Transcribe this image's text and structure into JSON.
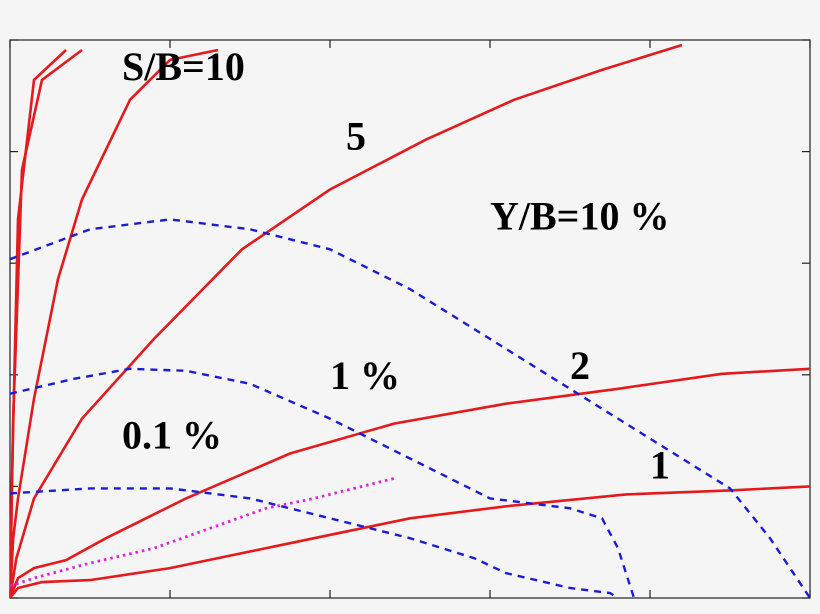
{
  "chart_data": {
    "type": "line",
    "grid": false,
    "series": [
      {
        "name": "S/B=10",
        "style": "solid",
        "color": "#e41a1c",
        "points": [
          [
            0,
            0
          ],
          [
            0.05,
            2
          ],
          [
            0.4,
            18
          ],
          [
            1.5,
            43
          ],
          [
            4,
            52
          ],
          [
            9,
            55
          ]
        ]
      },
      {
        "name": "S/B=10",
        "style": "solid",
        "color": "#e41a1c",
        "points": [
          [
            0,
            0
          ],
          [
            0.05,
            2
          ],
          [
            0.3,
            14
          ],
          [
            1,
            38
          ],
          [
            3,
            52
          ],
          [
            7,
            55
          ]
        ]
      },
      {
        "name": "S/B=10",
        "style": "solid",
        "color": "#e41a1c",
        "points": [
          [
            0,
            0
          ],
          [
            0.4,
            6
          ],
          [
            1,
            10
          ],
          [
            3,
            20
          ],
          [
            6,
            32
          ],
          [
            9,
            40
          ],
          [
            15,
            50
          ],
          [
            20,
            54
          ],
          [
            26,
            55
          ]
        ]
      },
      {
        "name": "5",
        "style": "solid",
        "color": "#e41a1c",
        "points": [
          [
            0,
            0
          ],
          [
            0.8,
            4
          ],
          [
            3,
            10
          ],
          [
            9,
            18
          ],
          [
            18,
            26
          ],
          [
            29,
            35
          ],
          [
            40,
            41
          ],
          [
            52,
            46
          ],
          [
            63,
            50
          ],
          [
            74,
            53
          ],
          [
            84,
            55.5
          ]
        ]
      },
      {
        "name": "2",
        "style": "solid",
        "color": "#e41a1c",
        "points": [
          [
            0,
            0
          ],
          [
            1,
            2
          ],
          [
            3,
            3
          ],
          [
            7,
            3.8
          ],
          [
            12,
            6
          ],
          [
            22,
            10
          ],
          [
            35,
            14.5
          ],
          [
            48,
            17.5
          ],
          [
            62,
            19.5
          ],
          [
            76,
            21
          ],
          [
            89,
            22.5
          ],
          [
            100,
            23
          ]
        ]
      },
      {
        "name": "1",
        "style": "solid",
        "color": "#e41a1c",
        "points": [
          [
            0,
            0
          ],
          [
            1,
            1
          ],
          [
            4,
            1.6
          ],
          [
            10,
            1.8
          ],
          [
            20,
            3
          ],
          [
            35,
            5.5
          ],
          [
            50,
            8
          ],
          [
            62,
            9.2
          ],
          [
            77,
            10.4
          ],
          [
            90,
            10.8
          ],
          [
            100,
            11.2
          ]
        ]
      },
      {
        "name": "Y/B=10 %",
        "style": "dashed",
        "color": "#1a1adb",
        "points": [
          [
            0,
            34
          ],
          [
            10,
            37
          ],
          [
            20,
            38
          ],
          [
            30,
            37
          ],
          [
            40,
            35
          ],
          [
            50,
            31
          ],
          [
            60,
            26
          ],
          [
            70,
            21
          ],
          [
            80,
            16
          ],
          [
            90,
            11
          ],
          [
            95,
            6
          ],
          [
            100,
            0
          ]
        ]
      },
      {
        "name": "1 %",
        "style": "dashed",
        "color": "#1a1adb",
        "points": [
          [
            0,
            20.5
          ],
          [
            8,
            22
          ],
          [
            15,
            23
          ],
          [
            22,
            22.8
          ],
          [
            30,
            21.5
          ],
          [
            40,
            18
          ],
          [
            50,
            14
          ],
          [
            60,
            10
          ],
          [
            70,
            9
          ],
          [
            74,
            8
          ],
          [
            76,
            5
          ],
          [
            78,
            0
          ]
        ]
      },
      {
        "name": "0.1 %",
        "style": "dashed",
        "color": "#1a1adb",
        "points": [
          [
            0,
            10.5
          ],
          [
            10,
            11
          ],
          [
            20,
            11
          ],
          [
            30,
            10
          ],
          [
            40,
            8
          ],
          [
            50,
            6
          ],
          [
            58,
            4
          ],
          [
            62,
            2.5
          ],
          [
            70,
            1
          ],
          [
            75,
            0.5
          ],
          [
            76,
            0
          ]
        ]
      },
      {
        "name": "",
        "style": "dotted",
        "color": "#e020e0",
        "points": [
          [
            0,
            1.2
          ],
          [
            3,
            2
          ],
          [
            10,
            3.5
          ],
          [
            18,
            5
          ],
          [
            25,
            7
          ],
          [
            32,
            9
          ],
          [
            38,
            10
          ],
          [
            43,
            11
          ],
          [
            48,
            12
          ]
        ]
      }
    ],
    "labels": [
      {
        "text": "S/B=10",
        "x": 14,
        "y": 52
      },
      {
        "text": "5",
        "x": 42,
        "y": 45
      },
      {
        "text": "Y/B=10 %",
        "x": 60,
        "y": 37
      },
      {
        "text": "1 %",
        "x": 40,
        "y": 21
      },
      {
        "text": "2",
        "x": 70,
        "y": 22
      },
      {
        "text": "0.1 %",
        "x": 14,
        "y": 15
      },
      {
        "text": "1",
        "x": 80,
        "y": 12
      }
    ],
    "xlim": [
      0,
      100
    ],
    "ylim": [
      0,
      56
    ],
    "xticks": [
      0,
      20,
      40,
      60,
      80,
      100
    ],
    "yticks": [
      0,
      11.2,
      22.4,
      33.6,
      44.8,
      56
    ]
  }
}
